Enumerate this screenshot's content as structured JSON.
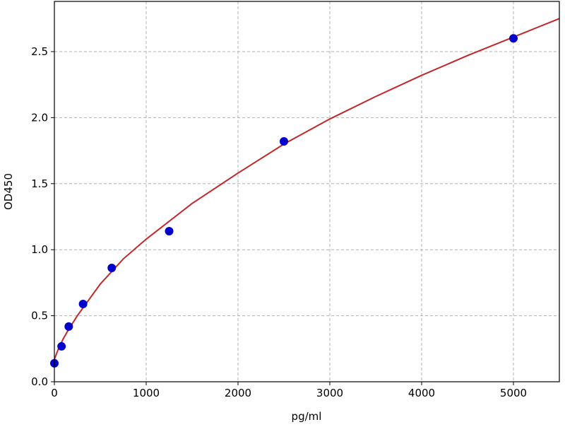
{
  "chart_data": {
    "type": "scatter",
    "title": "",
    "xlabel": "pg/ml",
    "ylabel": "OD450",
    "xlim": [
      0,
      5500
    ],
    "ylim": [
      0,
      2.88
    ],
    "xticks": [
      "0",
      "1000",
      "2000",
      "3000",
      "4000",
      "5000"
    ],
    "yticks": [
      "0.0",
      "0.5",
      "1.0",
      "1.5",
      "2.0",
      "2.5"
    ],
    "grid": true,
    "series": [
      {
        "type": "scatter",
        "color": "#0000cc",
        "x": [
          0,
          78.125,
          156.25,
          312.5,
          625,
          1250,
          2500,
          5000
        ],
        "y": [
          0.14,
          0.268,
          0.418,
          0.589,
          0.862,
          1.14,
          1.82,
          2.6
        ]
      },
      {
        "type": "line",
        "color": "#c0282a",
        "x": [
          0,
          50,
          100,
          150,
          250,
          500,
          750,
          1000,
          1500,
          2000,
          2500,
          3000,
          3500,
          4000,
          4500,
          5000,
          5500
        ],
        "y": [
          0.17,
          0.26,
          0.33,
          0.39,
          0.5,
          0.74,
          0.93,
          1.08,
          1.35,
          1.58,
          1.8,
          1.99,
          2.16,
          2.32,
          2.47,
          2.61,
          2.75
        ]
      }
    ]
  }
}
